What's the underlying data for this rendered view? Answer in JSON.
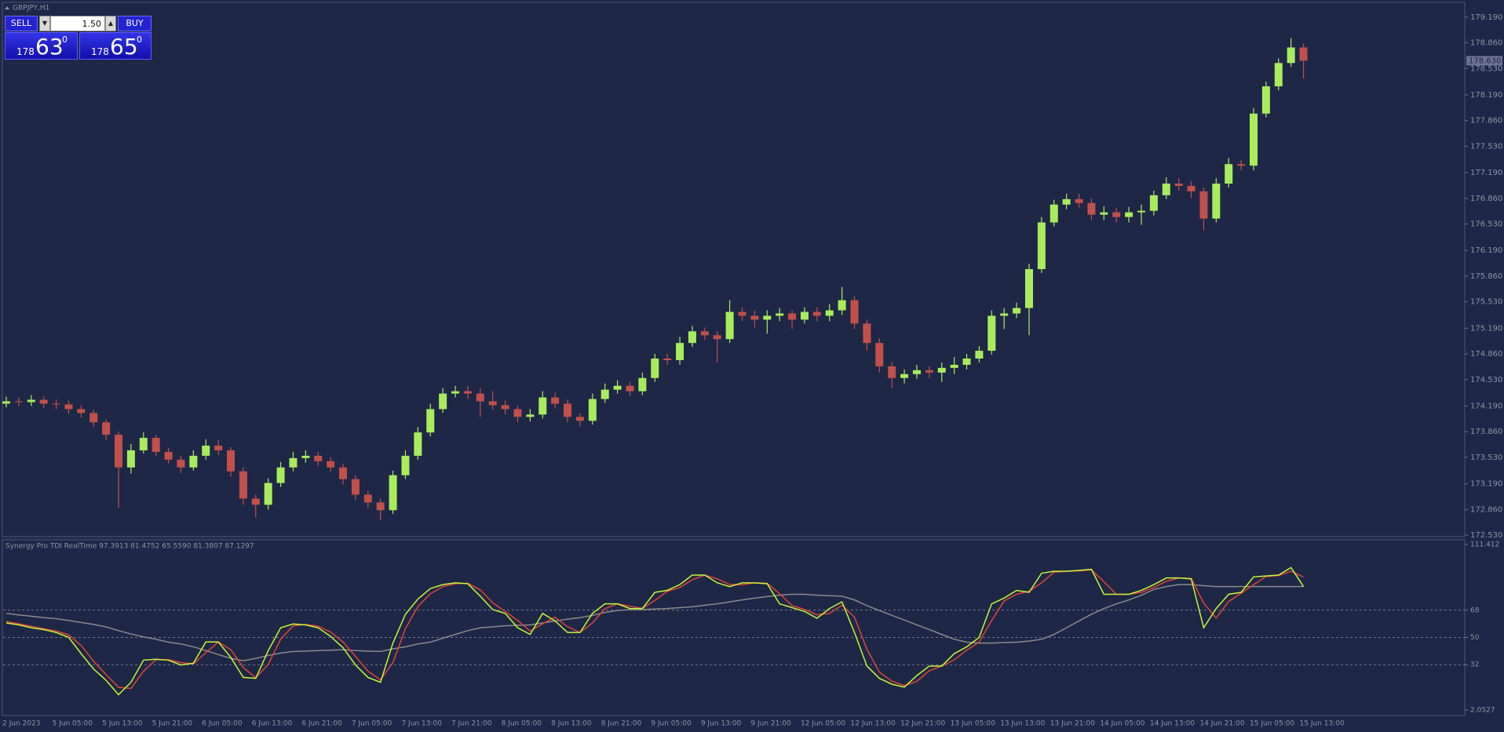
{
  "header": {
    "symbol": "GBPJPY,H1"
  },
  "trade_panel": {
    "sell": "SELL",
    "buy": "BUY",
    "lot": "1.50",
    "bid": {
      "big": "178",
      "pips": "63",
      "frac": "0"
    },
    "ask": {
      "big": "178",
      "pips": "65",
      "frac": "0"
    }
  },
  "chart_data": [
    {
      "type": "candlestick",
      "categories": [
        "2 Jun 2023",
        null,
        null,
        null,
        "5 Jun 05:00",
        null,
        null,
        null,
        "5 Jun 13:00",
        null,
        null,
        null,
        "5 Jun 21:00",
        null,
        null,
        null,
        "6 Jun 05:00",
        null,
        null,
        null,
        "6 Jun 13:00",
        null,
        null,
        null,
        "6 Jun 21:00",
        null,
        null,
        null,
        "7 Jun 05:00",
        null,
        null,
        null,
        "7 Jun 13:00",
        null,
        null,
        null,
        "7 Jun 21:00",
        null,
        null,
        null,
        "8 Jun 05:00",
        null,
        null,
        null,
        "8 Jun 13:00",
        null,
        null,
        null,
        "8 Jun 21:00",
        null,
        null,
        null,
        "9 Jun 05:00",
        null,
        null,
        null,
        "9 Jun 13:00",
        null,
        null,
        null,
        "9 Jun 21:00",
        null,
        null,
        null,
        "12 Jun 05:00",
        null,
        null,
        null,
        "12 Jun 13:00",
        null,
        null,
        null,
        "12 Jun 21:00",
        null,
        null,
        null,
        "13 Jun 05:00",
        null,
        null,
        null,
        "13 Jun 13:00",
        null,
        null,
        null,
        "13 Jun 21:00",
        null,
        null,
        null,
        "14 Jun 05:00",
        null,
        null,
        null,
        "14 Jun 13:00",
        null,
        null,
        null,
        "14 Jun 21:00",
        null,
        null,
        null,
        "15 Jun 05:00",
        null,
        null,
        null,
        "15 Jun 13:00"
      ],
      "open": [
        174.22,
        174.25,
        174.24,
        174.27,
        174.22,
        174.21,
        174.15,
        174.1,
        173.98,
        173.82,
        173.4,
        173.62,
        173.78,
        173.6,
        173.5,
        173.4,
        173.55,
        173.68,
        173.62,
        173.35,
        173.0,
        172.92,
        173.2,
        173.4,
        173.52,
        173.55,
        173.48,
        173.4,
        173.25,
        173.05,
        172.95,
        172.85,
        173.3,
        173.55,
        173.85,
        174.15,
        174.35,
        174.38,
        174.35,
        174.25,
        174.2,
        174.15,
        174.05,
        174.08,
        174.3,
        174.22,
        174.05,
        174.0,
        174.28,
        174.4,
        174.45,
        174.38,
        174.55,
        174.8,
        174.78,
        175.0,
        175.15,
        175.1,
        175.05,
        175.4,
        175.35,
        175.3,
        175.35,
        175.38,
        175.3,
        175.4,
        175.35,
        175.42,
        175.55,
        175.25,
        175.0,
        174.7,
        174.55,
        174.6,
        174.65,
        174.62,
        174.68,
        174.72,
        174.8,
        174.9,
        175.35,
        175.38,
        175.45,
        175.95,
        176.55,
        176.78,
        176.85,
        176.8,
        176.65,
        176.68,
        176.62,
        176.68,
        176.7,
        176.9,
        177.05,
        177.02,
        176.95,
        176.6,
        177.05,
        177.3,
        177.28,
        177.95,
        178.3,
        178.6,
        178.8
      ],
      "high": [
        174.31,
        174.3,
        174.33,
        174.31,
        174.27,
        174.26,
        174.2,
        174.14,
        174.02,
        173.86,
        173.7,
        173.85,
        173.82,
        173.65,
        173.55,
        173.62,
        173.76,
        173.75,
        173.66,
        173.4,
        173.05,
        173.26,
        173.47,
        173.6,
        173.62,
        173.6,
        173.53,
        173.45,
        173.3,
        173.1,
        173.0,
        173.36,
        173.62,
        173.92,
        174.22,
        174.42,
        174.45,
        174.45,
        174.42,
        174.38,
        174.26,
        174.2,
        174.15,
        174.38,
        174.36,
        174.27,
        174.1,
        174.35,
        174.48,
        174.52,
        174.5,
        174.62,
        174.86,
        174.86,
        175.08,
        175.22,
        175.2,
        175.15,
        175.55,
        175.46,
        175.42,
        175.42,
        175.45,
        175.42,
        175.46,
        175.46,
        175.5,
        175.72,
        175.6,
        175.3,
        175.06,
        174.75,
        174.66,
        174.72,
        174.7,
        174.75,
        174.82,
        174.86,
        174.96,
        175.42,
        175.45,
        175.52,
        176.02,
        176.62,
        176.84,
        176.92,
        176.92,
        176.86,
        176.76,
        176.74,
        176.75,
        176.78,
        176.96,
        177.13,
        177.12,
        177.08,
        177.0,
        177.12,
        177.38,
        177.35,
        178.02,
        178.36,
        178.66,
        178.92,
        178.85
      ],
      "low": [
        174.17,
        174.19,
        174.19,
        174.16,
        174.15,
        174.09,
        174.04,
        173.92,
        173.75,
        172.88,
        173.32,
        173.58,
        173.55,
        173.45,
        173.33,
        173.36,
        173.5,
        173.56,
        173.28,
        172.92,
        172.76,
        172.86,
        173.15,
        173.35,
        173.46,
        173.42,
        173.34,
        173.18,
        172.98,
        172.88,
        172.72,
        172.8,
        173.25,
        173.5,
        173.8,
        174.1,
        174.3,
        174.28,
        174.05,
        174.14,
        174.08,
        173.98,
        173.99,
        174.03,
        174.16,
        173.98,
        173.93,
        173.95,
        174.23,
        174.35,
        174.32,
        174.33,
        174.5,
        174.72,
        174.72,
        174.95,
        175.04,
        174.75,
        175.0,
        175.28,
        175.2,
        175.12,
        175.28,
        175.18,
        175.25,
        175.28,
        175.28,
        175.36,
        175.18,
        174.9,
        174.62,
        174.42,
        174.48,
        174.54,
        174.55,
        174.5,
        174.6,
        174.66,
        174.75,
        174.85,
        175.18,
        175.32,
        175.1,
        175.9,
        176.5,
        176.72,
        176.74,
        176.58,
        176.58,
        176.55,
        176.55,
        176.52,
        176.64,
        176.85,
        176.96,
        176.86,
        176.45,
        176.55,
        177.0,
        177.22,
        177.22,
        177.9,
        178.25,
        178.55,
        178.4
      ],
      "close": [
        174.25,
        174.24,
        174.27,
        174.22,
        174.21,
        174.15,
        174.1,
        173.98,
        173.82,
        173.4,
        173.62,
        173.78,
        173.6,
        173.5,
        173.4,
        173.55,
        173.68,
        173.62,
        173.35,
        173.0,
        172.92,
        173.2,
        173.4,
        173.52,
        173.55,
        173.48,
        173.4,
        173.25,
        173.05,
        172.95,
        172.85,
        173.3,
        173.55,
        173.85,
        174.15,
        174.35,
        174.38,
        174.35,
        174.25,
        174.2,
        174.15,
        174.05,
        174.08,
        174.3,
        174.22,
        174.05,
        174.0,
        174.28,
        174.4,
        174.45,
        174.38,
        174.55,
        174.8,
        174.78,
        175.0,
        175.15,
        175.1,
        175.05,
        175.4,
        175.35,
        175.3,
        175.35,
        175.38,
        175.3,
        175.4,
        175.35,
        175.42,
        175.55,
        175.25,
        175.0,
        174.7,
        174.55,
        174.6,
        174.65,
        174.62,
        174.68,
        174.72,
        174.8,
        174.9,
        175.35,
        175.38,
        175.45,
        175.95,
        176.55,
        176.78,
        176.85,
        176.8,
        176.65,
        176.68,
        176.62,
        176.68,
        176.7,
        176.9,
        177.05,
        177.02,
        176.95,
        176.6,
        177.05,
        177.3,
        177.28,
        177.95,
        178.3,
        178.6,
        178.8,
        178.63
      ],
      "up_color": "#a8ec5e",
      "down_color": "#c0504d",
      "ylim": [
        172.51,
        179.37
      ],
      "yticks": [
        {
          "value": 179.19,
          "label": "179.190"
        },
        {
          "value": 178.86,
          "label": "178.860"
        },
        {
          "value": 178.53,
          "label": "178.530"
        },
        {
          "value": 178.19,
          "label": "178.190"
        },
        {
          "value": 177.86,
          "label": "177.860"
        },
        {
          "value": 177.53,
          "label": "177.530"
        },
        {
          "value": 177.19,
          "label": "177.190"
        },
        {
          "value": 176.86,
          "label": "176.860"
        },
        {
          "value": 176.53,
          "label": "176.530"
        },
        {
          "value": 176.19,
          "label": "176.190"
        },
        {
          "value": 175.86,
          "label": "175.860"
        },
        {
          "value": 175.53,
          "label": "175.530"
        },
        {
          "value": 175.19,
          "label": "175.190"
        },
        {
          "value": 174.86,
          "label": "174.860"
        },
        {
          "value": 174.53,
          "label": "174.530"
        },
        {
          "value": 174.19,
          "label": "174.190"
        },
        {
          "value": 173.86,
          "label": "173.860"
        },
        {
          "value": 173.53,
          "label": "173.530"
        },
        {
          "value": 173.19,
          "label": "173.190"
        },
        {
          "value": 172.86,
          "label": "172.860"
        },
        {
          "value": 172.53,
          "label": "172.530"
        }
      ],
      "current_price": {
        "value": 178.63,
        "label": "178.630"
      }
    },
    {
      "type": "line",
      "title": "Synergy Pro TDI RealTime 97.3913 81.4752 65.5590 81.3807 87.1297",
      "series": [
        {
          "color": "#8a8a8a",
          "values": [
            65.9,
            64.9,
            64.0,
            63.1,
            62.4,
            61.2,
            59.9,
            58.6,
            57.0,
            54.5,
            52.3,
            50.4,
            48.8,
            46.9,
            45.7,
            43.8,
            41.3,
            38.7,
            36.2,
            34.6,
            36.2,
            38.1,
            39.7,
            40.7,
            41.0,
            41.3,
            41.6,
            41.9,
            41.3,
            41.0,
            40.7,
            42.5,
            43.8,
            45.7,
            46.9,
            49.5,
            52.0,
            54.5,
            56.4,
            57.0,
            57.7,
            58.0,
            58.3,
            59.6,
            60.9,
            62.1,
            63.1,
            64.6,
            66.5,
            67.8,
            68.4,
            68.4,
            68.8,
            69.1,
            69.7,
            70.3,
            71.3,
            72.2,
            73.5,
            74.8,
            76.0,
            77.0,
            77.9,
            78.5,
            78.5,
            77.9,
            77.6,
            77.3,
            74.8,
            71.0,
            67.8,
            64.6,
            61.5,
            58.3,
            55.2,
            52.0,
            48.8,
            46.9,
            46.3,
            46.3,
            46.6,
            46.9,
            47.6,
            48.8,
            52.0,
            56.4,
            60.9,
            65.3,
            69.1,
            72.2,
            74.8,
            77.9,
            81.7,
            83.6,
            84.9,
            84.9,
            84.2,
            83.6,
            83.6,
            83.6,
            83.6,
            83.6,
            83.6,
            83.6,
            83.6
          ]
        },
        {
          "color": "#e0443c",
          "values": [
            60.5,
            59.0,
            57.4,
            55.8,
            54.3,
            51.7,
            44.7,
            34.3,
            25.5,
            17.0,
            16.3,
            27.7,
            35.3,
            35.3,
            33.4,
            32.4,
            40.0,
            47.0,
            41.9,
            30.2,
            23.3,
            32.2,
            48.9,
            57.7,
            58.6,
            57.4,
            53.6,
            47.0,
            37.5,
            27.7,
            22.0,
            33.4,
            55.8,
            70.4,
            78.9,
            83.6,
            85.5,
            85.8,
            81.4,
            72.9,
            67.2,
            61.2,
            54.2,
            59.0,
            63.4,
            57.1,
            53.3,
            59.6,
            69.1,
            72.2,
            70.7,
            69.1,
            74.5,
            80.5,
            83.0,
            88.1,
            91.2,
            88.7,
            84.9,
            84.9,
            86.1,
            85.8,
            78.9,
            71.0,
            68.5,
            65.0,
            65.9,
            71.3,
            63.4,
            42.2,
            27.1,
            21.1,
            18.2,
            21.0,
            28.0,
            31.1,
            35.2,
            41.6,
            47.0,
            61.2,
            74.1,
            78.6,
            80.5,
            86.1,
            93.1,
            93.7,
            94.0,
            94.7,
            86.8,
            78.5,
            78.5,
            79.8,
            83.0,
            87.1,
            89.3,
            89.0,
            72.6,
            62.8,
            73.8,
            79.2,
            84.9,
            90.3,
            90.9,
            93.7,
            89.9
          ]
        },
        {
          "color": "#c6f53a",
          "values": [
            59.6,
            58.3,
            56.4,
            55.2,
            53.3,
            50.1,
            39.3,
            29.2,
            21.7,
            12.2,
            20.4,
            35.0,
            35.6,
            35.0,
            31.8,
            33.0,
            47.0,
            47.0,
            36.8,
            23.6,
            23.0,
            41.3,
            56.4,
            58.9,
            58.3,
            56.4,
            50.7,
            43.2,
            31.8,
            23.6,
            20.4,
            46.3,
            65.3,
            75.4,
            82.3,
            84.9,
            86.1,
            85.5,
            77.3,
            68.4,
            65.9,
            56.4,
            52.0,
            65.9,
            60.9,
            53.3,
            53.3,
            65.9,
            72.2,
            72.2,
            69.1,
            69.1,
            79.8,
            81.1,
            84.9,
            91.2,
            91.2,
            86.1,
            83.6,
            86.1,
            86.1,
            85.5,
            72.2,
            69.7,
            67.2,
            62.7,
            69.1,
            73.5,
            53.3,
            31.1,
            23.0,
            19.1,
            17.2,
            24.8,
            31.1,
            31.1,
            39.3,
            43.8,
            50.1,
            72.2,
            76.0,
            81.1,
            79.8,
            92.4,
            93.7,
            93.7,
            94.3,
            95.0,
            78.5,
            78.5,
            78.5,
            81.1,
            84.9,
            89.3,
            89.3,
            88.7,
            56.4,
            69.1,
            78.5,
            79.8,
            90.0,
            90.6,
            91.2,
            96.2,
            83.6
          ]
        }
      ],
      "ylim": [
        2.0527,
        111.412
      ],
      "yticks": [
        111.412,
        68,
        50,
        32,
        2.0527
      ],
      "levels": [
        68,
        50,
        32
      ]
    }
  ]
}
